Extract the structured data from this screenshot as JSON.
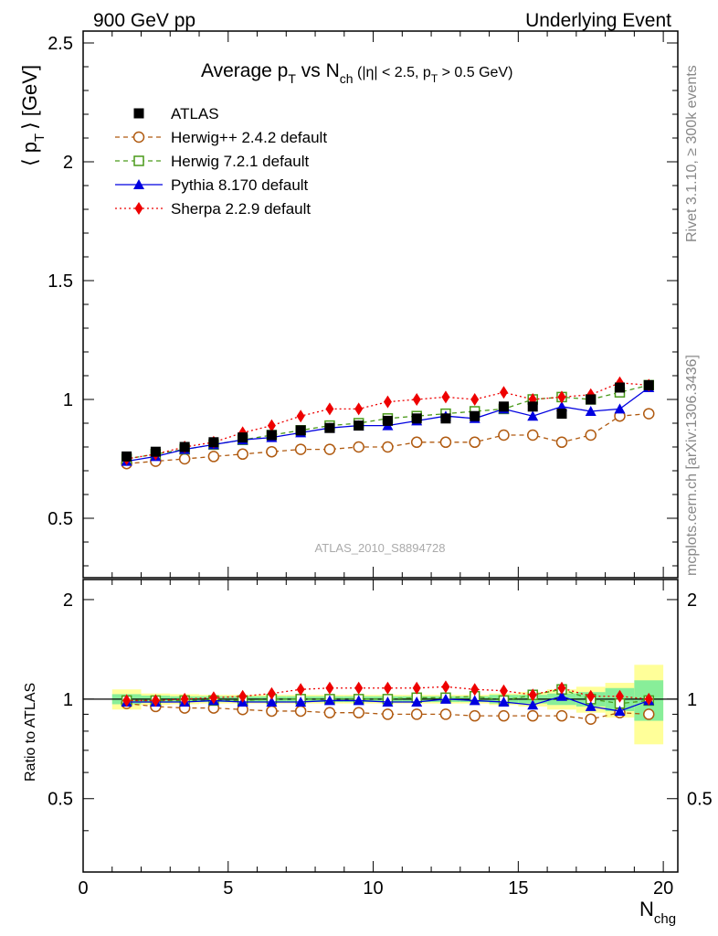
{
  "header": {
    "left": "900 GeV pp",
    "right": "Underlying Event"
  },
  "side_labels": {
    "rivet": "Rivet 3.1.10, ≥ 300k events",
    "mcplots": "mcplots.cern.ch [arXiv:1306.3436]"
  },
  "watermark": "ATLAS_2010_S8894728",
  "title": {
    "main": "Average p",
    "sub1": "T",
    "vs": " vs N",
    "sub2": "ch",
    "cut": " (|η| < 2.5, p",
    "sub3": "T",
    "cut2": " > 0.5 GeV)"
  },
  "axes": {
    "ylabel_main": "⟨ p",
    "ylabel_sub": "T",
    "ylabel_unit": "⟩ [GeV]",
    "ylabel_ratio": "Ratio to ATLAS",
    "xlabel_main": "N",
    "xlabel_sub": "chg",
    "main_y_ticks": [
      "0.5",
      "1",
      "1.5",
      "2",
      "2.5"
    ],
    "ratio_y_ticks": [
      "0.5",
      "1",
      "2"
    ],
    "x_ticks": [
      "0",
      "5",
      "10",
      "15",
      "20"
    ]
  },
  "legend": [
    {
      "label": "ATLAS",
      "color": "#000000",
      "marker": "square-filled"
    },
    {
      "label": "Herwig++ 2.4.2 default",
      "color": "#b05a10",
      "marker": "circle-open"
    },
    {
      "label": "Herwig 7.2.1 default",
      "color": "#4a9a1a",
      "marker": "square-open"
    },
    {
      "label": "Pythia 8.170 default",
      "color": "#0000e0",
      "marker": "triangle-filled"
    },
    {
      "label": "Sherpa 2.2.9 default",
      "color": "#ee0000",
      "marker": "diamond-filled"
    }
  ],
  "chart_data": [
    {
      "type": "scatter",
      "xlabel": "N_chg",
      "ylabel": "⟨ p_T ⟩ [GeV]",
      "xlim": [
        0,
        20.5
      ],
      "ylim": [
        0.25,
        2.55
      ],
      "x": [
        1.5,
        2.5,
        3.5,
        4.5,
        5.5,
        6.5,
        7.5,
        8.5,
        9.5,
        10.5,
        11.5,
        12.5,
        13.5,
        14.5,
        15.5,
        16.5,
        17.5,
        18.5,
        19.5
      ],
      "series": [
        {
          "name": "ATLAS",
          "values": [
            0.76,
            0.78,
            0.8,
            0.82,
            0.84,
            0.85,
            0.87,
            0.88,
            0.89,
            0.91,
            0.92,
            0.92,
            0.93,
            0.97,
            0.97,
            0.94,
            1.0,
            1.05,
            1.06
          ]
        },
        {
          "name": "Herwig++ 2.4.2 default",
          "values": [
            0.73,
            0.74,
            0.75,
            0.76,
            0.77,
            0.78,
            0.79,
            0.79,
            0.8,
            0.8,
            0.82,
            0.82,
            0.82,
            0.85,
            0.85,
            0.82,
            0.85,
            0.93,
            0.94
          ]
        },
        {
          "name": "Herwig 7.2.1 default",
          "values": [
            0.75,
            0.77,
            0.79,
            0.81,
            0.83,
            0.85,
            0.87,
            0.89,
            0.9,
            0.92,
            0.93,
            0.94,
            0.95,
            0.96,
            1.0,
            1.01,
            1.0,
            1.03,
            1.06
          ]
        },
        {
          "name": "Pythia 8.170 default",
          "values": [
            0.74,
            0.76,
            0.79,
            0.81,
            0.83,
            0.84,
            0.86,
            0.88,
            0.89,
            0.89,
            0.91,
            0.93,
            0.92,
            0.96,
            0.93,
            0.97,
            0.95,
            0.96,
            1.05
          ]
        },
        {
          "name": "Sherpa 2.2.9 default",
          "values": [
            0.75,
            0.77,
            0.8,
            0.82,
            0.86,
            0.89,
            0.93,
            0.96,
            0.96,
            0.99,
            1.0,
            1.01,
            1.0,
            1.03,
            1.0,
            1.01,
            1.02,
            1.07,
            1.06
          ]
        }
      ]
    },
    {
      "type": "scatter",
      "xlabel": "N_chg",
      "ylabel": "Ratio to ATLAS",
      "xlim": [
        0,
        20.5
      ],
      "ylim": [
        0.3,
        2.3
      ],
      "x": [
        1.5,
        2.5,
        3.5,
        4.5,
        5.5,
        6.5,
        7.5,
        8.5,
        9.5,
        10.5,
        11.5,
        12.5,
        13.5,
        14.5,
        15.5,
        16.5,
        17.5,
        18.5,
        19.5
      ],
      "bands": {
        "green_halfwidth": [
          0.035,
          0.025,
          0.02,
          0.02,
          0.02,
          0.02,
          0.02,
          0.02,
          0.02,
          0.02,
          0.02,
          0.02,
          0.02,
          0.03,
          0.03,
          0.04,
          0.05,
          0.08,
          0.14
        ],
        "yellow_halfwidth": [
          0.07,
          0.04,
          0.035,
          0.03,
          0.03,
          0.03,
          0.03,
          0.03,
          0.03,
          0.03,
          0.03,
          0.03,
          0.03,
          0.04,
          0.05,
          0.07,
          0.09,
          0.12,
          0.27
        ]
      },
      "series": [
        {
          "name": "Herwig++ 2.4.2 default",
          "values": [
            0.97,
            0.95,
            0.94,
            0.94,
            0.93,
            0.92,
            0.92,
            0.91,
            0.91,
            0.9,
            0.9,
            0.9,
            0.89,
            0.89,
            0.89,
            0.89,
            0.87,
            0.91,
            0.9
          ]
        },
        {
          "name": "Herwig 7.2.1 default",
          "values": [
            0.99,
            0.99,
            0.99,
            0.99,
            0.99,
            1.0,
            1.0,
            1.0,
            1.0,
            1.0,
            1.01,
            1.01,
            1.02,
            0.99,
            1.03,
            1.07,
            1.0,
            0.97,
            0.99
          ]
        },
        {
          "name": "Pythia 8.170 default",
          "values": [
            0.98,
            0.98,
            0.98,
            0.99,
            0.98,
            0.98,
            0.98,
            0.99,
            0.99,
            0.98,
            0.98,
            1.0,
            0.99,
            0.98,
            0.96,
            1.02,
            0.95,
            0.92,
            0.99
          ]
        },
        {
          "name": "Sherpa 2.2.9 default",
          "values": [
            0.99,
            0.99,
            1.0,
            1.01,
            1.02,
            1.04,
            1.07,
            1.08,
            1.08,
            1.08,
            1.08,
            1.09,
            1.07,
            1.06,
            1.03,
            1.08,
            1.02,
            1.02,
            1.0
          ]
        }
      ]
    }
  ]
}
